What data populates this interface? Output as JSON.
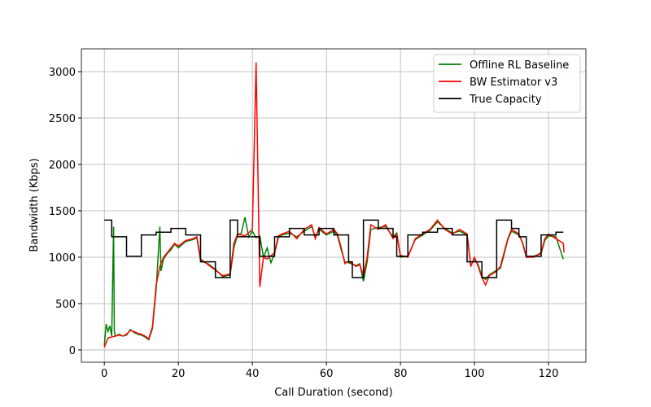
{
  "chart_data": {
    "type": "line",
    "xlabel": "Call Duration (second)",
    "ylabel": "Bandwidth (Kbps)",
    "xlim": [
      -6.2,
      130.1
    ],
    "ylim": [
      -132,
      3246
    ],
    "xticks": [
      0,
      20,
      40,
      60,
      80,
      100,
      120
    ],
    "yticks": [
      0,
      500,
      1000,
      1500,
      2000,
      2500,
      3000
    ],
    "grid": true,
    "legend": "upper right",
    "series": [
      {
        "name": "Offline RL Baseline",
        "color": "#008000",
        "x": [
          0,
          0.5,
          1,
          1.5,
          2,
          2.5,
          2.7,
          3,
          4,
          5,
          6,
          7,
          8,
          9,
          10,
          11,
          12,
          13,
          14,
          15,
          15.3,
          16,
          17,
          18,
          19,
          20,
          22,
          24,
          25,
          26,
          28,
          30,
          32,
          34,
          35,
          36,
          37,
          38,
          39,
          40,
          41,
          42,
          43,
          44,
          45,
          46,
          47,
          48,
          50,
          52,
          54,
          56,
          57,
          58,
          60,
          62,
          63,
          64,
          65,
          66,
          68,
          69,
          70,
          71,
          72,
          74,
          76,
          78,
          79,
          80,
          82,
          84,
          86,
          88,
          90,
          92,
          94,
          96,
          98,
          99,
          100,
          101,
          102,
          103,
          104,
          106,
          107,
          108,
          109,
          110,
          112,
          113,
          114,
          116,
          118,
          119,
          120,
          122,
          124
        ],
        "values": [
          50,
          280,
          200,
          260,
          150,
          1330,
          200,
          150,
          170,
          150,
          160,
          220,
          190,
          170,
          160,
          140,
          110,
          230,
          650,
          1330,
          850,
          980,
          1040,
          1080,
          1140,
          1100,
          1170,
          1190,
          1210,
          960,
          930,
          870,
          790,
          810,
          1100,
          1240,
          1260,
          1430,
          1220,
          1280,
          1210,
          1230,
          1000,
          1100,
          940,
          1040,
          1210,
          1240,
          1260,
          1220,
          1280,
          1330,
          1220,
          1300,
          1240,
          1280,
          1230,
          1080,
          950,
          940,
          910,
          930,
          740,
          950,
          1300,
          1320,
          1330,
          1220,
          1260,
          1000,
          1010,
          1190,
          1240,
          1290,
          1380,
          1310,
          1260,
          1280,
          1240,
          910,
          980,
          920,
          790,
          760,
          810,
          860,
          880,
          1030,
          1190,
          1280,
          1240,
          1160,
          1000,
          1010,
          1040,
          1180,
          1230,
          1220,
          980
        ]
      },
      {
        "name": "BW Estimator v3",
        "color": "#ff0000",
        "x": [
          0,
          1,
          2,
          3,
          4,
          5,
          6,
          7,
          8,
          9,
          10,
          11,
          12,
          13,
          14,
          15,
          16,
          17,
          18,
          19,
          20,
          22,
          24,
          25,
          26,
          28,
          30,
          32,
          34,
          35,
          36,
          38,
          40,
          41,
          41.5,
          42,
          43,
          44,
          46,
          47,
          48,
          50,
          52,
          54,
          56,
          57,
          58,
          60,
          62,
          63,
          64,
          65,
          66,
          68,
          69,
          70,
          71,
          72,
          74,
          76,
          78,
          79,
          80,
          82,
          84,
          86,
          88,
          90,
          92,
          94,
          96,
          98,
          99,
          100,
          101,
          102,
          103,
          104,
          106,
          107,
          108,
          109,
          110,
          112,
          113,
          114,
          116,
          118,
          119,
          120,
          122,
          124,
          124.2
        ],
        "values": [
          30,
          130,
          140,
          150,
          160,
          150,
          170,
          210,
          200,
          180,
          170,
          150,
          120,
          250,
          700,
          900,
          1000,
          1050,
          1100,
          1150,
          1120,
          1180,
          1200,
          1220,
          980,
          920,
          860,
          800,
          820,
          1150,
          1250,
          1230,
          1300,
          3100,
          1900,
          680,
          1000,
          980,
          1050,
          1230,
          1250,
          1280,
          1200,
          1300,
          1350,
          1200,
          1320,
          1250,
          1300,
          1250,
          1100,
          930,
          960,
          900,
          920,
          800,
          1000,
          1350,
          1300,
          1350,
          1200,
          1250,
          1020,
          1000,
          1200,
          1250,
          1300,
          1400,
          1300,
          1250,
          1300,
          1250,
          900,
          1000,
          900,
          780,
          700,
          800,
          850,
          900,
          1050,
          1200,
          1300,
          1250,
          1150,
          1000,
          1000,
          1050,
          1200,
          1250,
          1200,
          1150,
          1050
        ]
      },
      {
        "name": "True Capacity",
        "color": "#000000",
        "x": [
          0,
          2,
          2,
          6,
          6,
          10,
          10,
          14,
          14,
          18,
          18,
          22,
          22,
          26,
          26,
          30,
          30,
          34,
          34,
          36,
          36,
          42,
          42,
          46,
          46,
          50,
          50,
          54,
          54,
          58,
          58,
          62,
          62,
          66,
          66,
          67,
          67,
          70,
          70,
          74,
          74,
          78,
          78,
          79,
          79,
          82,
          82,
          86,
          86,
          90,
          90,
          94,
          94,
          98,
          98,
          102,
          102,
          106,
          106,
          110,
          110,
          112,
          112,
          114,
          114,
          118,
          118,
          122,
          122,
          124
        ],
        "values": [
          1400,
          1400,
          1220,
          1220,
          1010,
          1010,
          1240,
          1240,
          1270,
          1270,
          1310,
          1310,
          1240,
          1240,
          950,
          950,
          780,
          780,
          1400,
          1400,
          1220,
          1220,
          1010,
          1010,
          1220,
          1220,
          1310,
          1310,
          1240,
          1240,
          1310,
          1310,
          1240,
          1240,
          950,
          950,
          780,
          780,
          1400,
          1400,
          1310,
          1310,
          1220,
          1220,
          1010,
          1010,
          1240,
          1240,
          1270,
          1270,
          1310,
          1310,
          1240,
          1240,
          950,
          950,
          780,
          780,
          1400,
          1400,
          1310,
          1310,
          1220,
          1220,
          1010,
          1010,
          1240,
          1240,
          1270,
          1270
        ]
      }
    ]
  }
}
